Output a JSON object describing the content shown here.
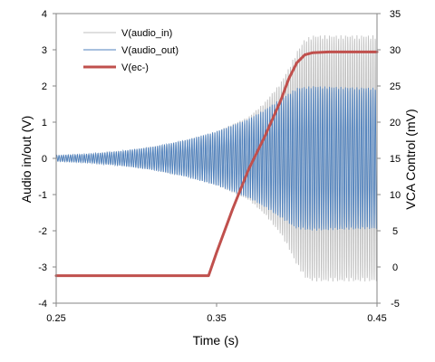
{
  "chart_data": {
    "type": "line",
    "xlabel": "Time (s)",
    "ylabel_left": "Audio in/out (V)",
    "ylabel_right": "VCA Control (mV)",
    "xlim": [
      0.25,
      0.45
    ],
    "ylim_left": [
      -4,
      4
    ],
    "ylim_right": [
      -5,
      35
    ],
    "x_ticks": [
      "0.25",
      "0.35",
      "0.45"
    ],
    "y_left_ticks": [
      "4",
      "3",
      "2",
      "1",
      "0",
      "-1",
      "-2",
      "-3",
      "-4"
    ],
    "y_right_ticks": [
      "35",
      "30",
      "25",
      "20",
      "15",
      "10",
      "5",
      "0",
      "-5"
    ],
    "grid": false,
    "legend_position": "top-left",
    "series": [
      {
        "name": "V(audio_in)",
        "axis": "left",
        "color": "#bfbfbf",
        "style": "oscillating-envelope",
        "envelope": {
          "x": [
            0.25,
            0.27,
            0.29,
            0.31,
            0.33,
            0.35,
            0.37,
            0.38,
            0.39,
            0.395,
            0.4,
            0.405,
            0.41,
            0.43,
            0.45
          ],
          "amplitude": [
            0.08,
            0.12,
            0.2,
            0.32,
            0.5,
            0.75,
            1.15,
            1.55,
            2.1,
            2.5,
            2.95,
            3.3,
            3.4,
            3.4,
            3.4
          ]
        }
      },
      {
        "name": "V(audio_out)",
        "axis": "left",
        "color": "#4f81bd",
        "style": "oscillating-envelope",
        "envelope": {
          "x": [
            0.25,
            0.27,
            0.29,
            0.31,
            0.33,
            0.35,
            0.37,
            0.38,
            0.39,
            0.4,
            0.41,
            0.43,
            0.45
          ],
          "amplitude": [
            0.08,
            0.12,
            0.2,
            0.32,
            0.5,
            0.75,
            1.1,
            1.35,
            1.65,
            1.95,
            2.0,
            1.97,
            1.95
          ]
        }
      },
      {
        "name": "V(ec-)",
        "axis": "right",
        "color": "#c0504d",
        "style": "line",
        "x": [
          0.25,
          0.34,
          0.345,
          0.35,
          0.36,
          0.37,
          0.38,
          0.39,
          0.395,
          0.4,
          0.405,
          0.41,
          0.42,
          0.43,
          0.44,
          0.45
        ],
        "y": [
          -1.2,
          -1.2,
          -1.2,
          2,
          8,
          13.5,
          18,
          23,
          26,
          28.2,
          29.3,
          29.6,
          29.7,
          29.7,
          29.7,
          29.7
        ]
      }
    ]
  }
}
